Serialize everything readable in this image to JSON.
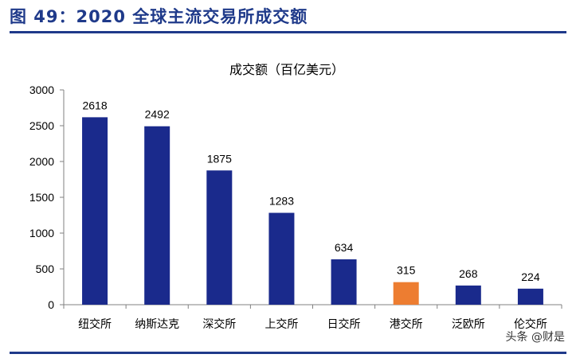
{
  "figure": {
    "title": "图 49：2020 全球主流交易所成交额",
    "watermark": "头条 @财是"
  },
  "colors": {
    "accent": "#1f3a8a",
    "bar": "#1a2a8c",
    "highlight": "#ed7d31"
  },
  "chart_data": {
    "type": "bar",
    "title": "成交额（百亿美元）",
    "categories": [
      "纽交所",
      "纳斯达克",
      "深交所",
      "上交所",
      "日交所",
      "港交所",
      "泛欧所",
      "伦交所"
    ],
    "values": [
      2618,
      2492,
      1875,
      1283,
      634,
      315,
      268,
      224
    ],
    "data_labels": [
      "2618",
      "2492",
      "1875",
      "1283",
      "634",
      "315",
      "268",
      "224"
    ],
    "highlight_category": "港交所",
    "ylim": [
      0,
      3000
    ],
    "yticks": [
      0,
      500,
      1000,
      1500,
      2000,
      2500,
      3000
    ],
    "ytick_labels": [
      "0",
      "500",
      "1000",
      "1500",
      "2000",
      "2500",
      "3000"
    ],
    "xlabel": "",
    "ylabel": "",
    "grid": false,
    "legend": "none"
  }
}
